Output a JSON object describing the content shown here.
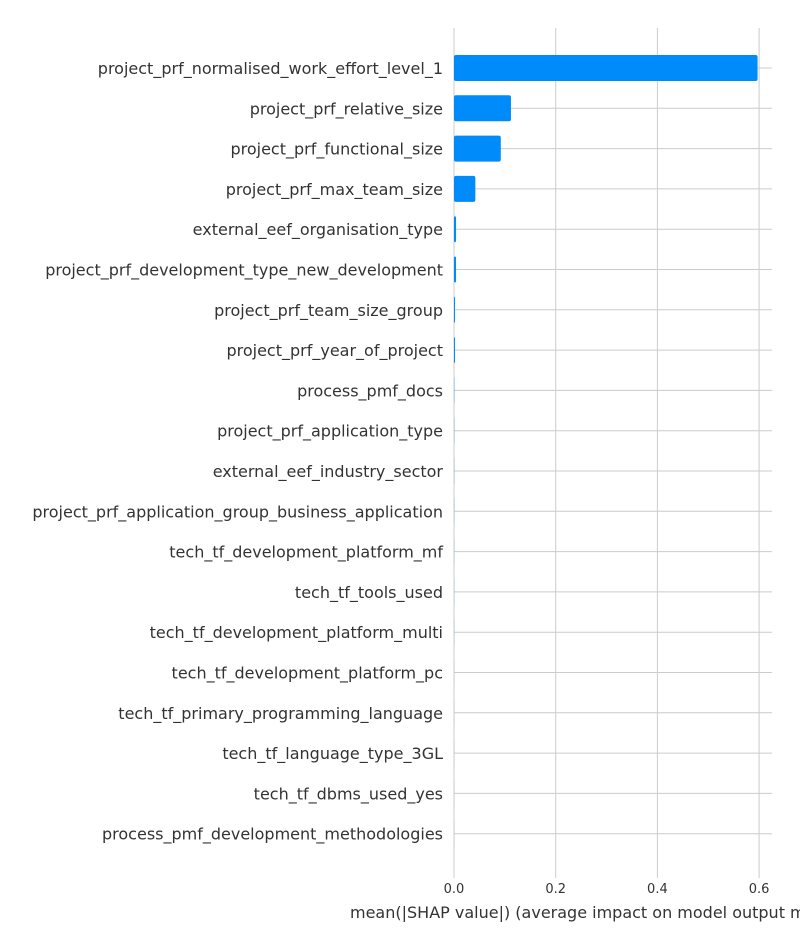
{
  "chart_data": {
    "type": "bar",
    "orientation": "horizontal",
    "title": "",
    "xlabel": "mean(|SHAP value|) (average impact on model output magnitude)",
    "ylabel": "",
    "categories": [
      "project_prf_normalised_work_effort_level_1",
      "project_prf_relative_size",
      "project_prf_functional_size",
      "project_prf_max_team_size",
      "external_eef_organisation_type",
      "project_prf_development_type_new_development",
      "project_prf_team_size_group",
      "project_prf_year_of_project",
      "process_pmf_docs",
      "project_prf_application_type",
      "external_eef_industry_sector",
      "project_prf_application_group_business_application",
      "tech_tf_development_platform_mf",
      "tech_tf_tools_used",
      "tech_tf_development_platform_multi",
      "tech_tf_development_platform_pc",
      "tech_tf_primary_programming_language",
      "tech_tf_language_type_3GL",
      "tech_tf_dbms_used_yes",
      "process_pmf_development_methodologies"
    ],
    "values": [
      0.597,
      0.112,
      0.092,
      0.042,
      0.004,
      0.004,
      0.002,
      0.002,
      0.0005,
      0.0004,
      0.0003,
      0.0003,
      0.0002,
      0.0002,
      0.0002,
      0.0001,
      0.0001,
      0.0001,
      0.0001,
      0.0001
    ],
    "xticks": [
      0,
      0.2,
      0.4,
      0.6
    ],
    "xtick_labels": [
      "0.0",
      "0.2",
      "0.4",
      "0.6"
    ],
    "xlim": [
      0,
      0.625
    ],
    "grid": true,
    "colors": {
      "bar": "#008bfb",
      "grid": "#cccccc",
      "text": "#333333"
    }
  }
}
